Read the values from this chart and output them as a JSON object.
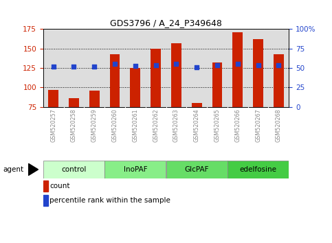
{
  "title": "GDS3796 / A_24_P349648",
  "samples": [
    "GSM520257",
    "GSM520258",
    "GSM520259",
    "GSM520260",
    "GSM520261",
    "GSM520262",
    "GSM520263",
    "GSM520264",
    "GSM520265",
    "GSM520266",
    "GSM520267",
    "GSM520268"
  ],
  "counts": [
    97,
    86,
    96,
    143,
    125,
    150,
    157,
    80,
    132,
    171,
    162,
    143
  ],
  "percentile_ranks": [
    52,
    52,
    52,
    55,
    53,
    54,
    55,
    51,
    54,
    55,
    54,
    54
  ],
  "ylim_left": [
    75,
    175
  ],
  "ylim_right": [
    0,
    100
  ],
  "yticks_left": [
    75,
    100,
    125,
    150,
    175
  ],
  "yticks_right": [
    0,
    25,
    50,
    75,
    100
  ],
  "yticklabels_right": [
    "0",
    "25",
    "50",
    "75",
    "100%"
  ],
  "bar_color": "#cc2200",
  "dot_color": "#2244cc",
  "groups": [
    {
      "label": "control",
      "start": 0,
      "end": 3,
      "color": "#ccffcc"
    },
    {
      "label": "InoPAF",
      "start": 3,
      "end": 6,
      "color": "#88ee88"
    },
    {
      "label": "GlcPAF",
      "start": 6,
      "end": 9,
      "color": "#66dd66"
    },
    {
      "label": "edelfosine",
      "start": 9,
      "end": 12,
      "color": "#44cc44"
    }
  ],
  "agent_label": "agent",
  "legend_count_label": "count",
  "legend_pct_label": "percentile rank within the sample",
  "ylabel_left_color": "#cc2200",
  "ylabel_right_color": "#2244cc",
  "tick_label_color": "#888888",
  "background_color": "#dddddd",
  "bar_width": 0.5,
  "figsize": [
    4.83,
    3.54
  ],
  "dpi": 100
}
